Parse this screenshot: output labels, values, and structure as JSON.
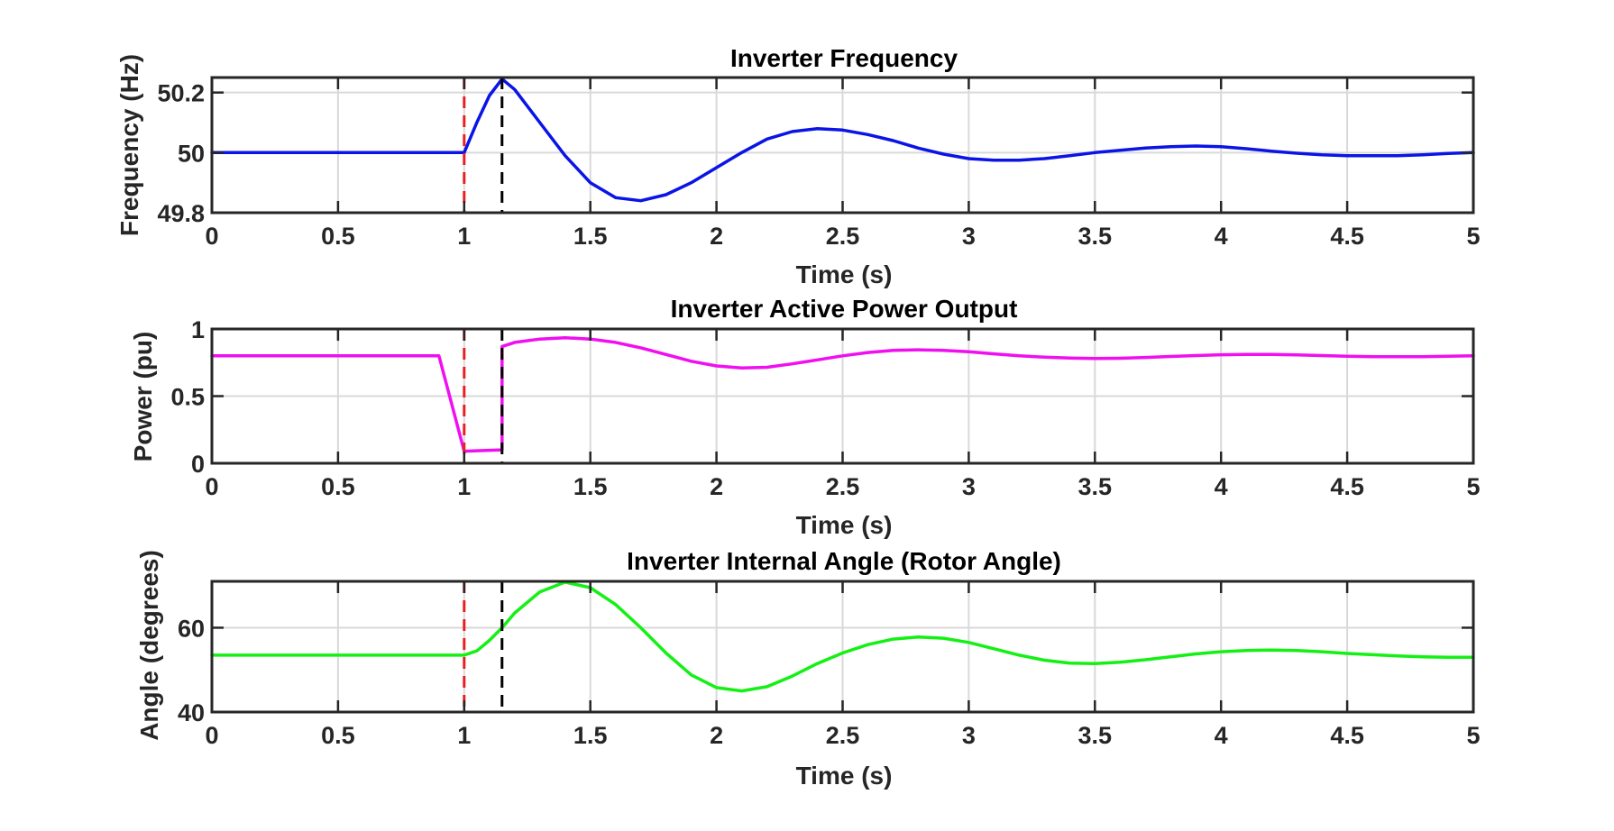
{
  "figure": {
    "background": "#ffffff",
    "axes_color": "#262626",
    "grid_color": "#d9d9d9",
    "event_start_color": "#e8211f",
    "event_clear_color": "#000000"
  },
  "chart_data": [
    {
      "type": "line",
      "title": "Inverter Frequency",
      "xlabel": "Time (s)",
      "ylabel": "Frequency (Hz)",
      "xlim": [
        0,
        5
      ],
      "ylim": [
        49.8,
        50.25
      ],
      "xticks": [
        0,
        0.5,
        1,
        1.5,
        2,
        2.5,
        3,
        3.5,
        4,
        4.5,
        5
      ],
      "xtick_labels": [
        "0",
        "0.5",
        "1",
        "1.5",
        "2",
        "2.5",
        "3",
        "3.5",
        "4",
        "4.5",
        "5"
      ],
      "yticks": [
        49.8,
        50,
        50.2
      ],
      "ytick_labels": [
        "49.8",
        "50",
        "50.2"
      ],
      "grid": true,
      "vlines": [
        {
          "x": 1.0,
          "style": "dashed",
          "color": "#e8211f"
        },
        {
          "x": 1.15,
          "style": "dashed",
          "color": "#000000"
        }
      ],
      "series": [
        {
          "color": "#0a14e6",
          "x": [
            0,
            1.0,
            1.05,
            1.1,
            1.15,
            1.2,
            1.3,
            1.4,
            1.5,
            1.6,
            1.7,
            1.8,
            1.9,
            2.0,
            2.1,
            2.2,
            2.3,
            2.4,
            2.5,
            2.6,
            2.7,
            2.8,
            2.9,
            3.0,
            3.1,
            3.2,
            3.3,
            3.4,
            3.5,
            3.6,
            3.7,
            3.8,
            3.9,
            4.0,
            4.1,
            4.2,
            4.3,
            4.4,
            4.5,
            4.6,
            4.7,
            4.8,
            4.9,
            5.0
          ],
          "y": [
            50.0,
            50.0,
            50.1,
            50.19,
            50.245,
            50.21,
            50.1,
            49.99,
            49.9,
            49.85,
            49.84,
            49.86,
            49.9,
            49.95,
            50.0,
            50.045,
            50.07,
            50.08,
            50.075,
            50.06,
            50.04,
            50.015,
            49.995,
            49.98,
            49.975,
            49.975,
            49.98,
            49.99,
            50.0,
            50.008,
            50.015,
            50.02,
            50.022,
            50.02,
            50.013,
            50.005,
            49.998,
            49.993,
            49.99,
            49.99,
            49.99,
            49.993,
            49.997,
            50.0
          ]
        }
      ]
    },
    {
      "type": "line",
      "title": "Inverter Active Power Output",
      "xlabel": "Time (s)",
      "ylabel": "Power (pu)",
      "xlim": [
        0,
        5
      ],
      "ylim": [
        0,
        1
      ],
      "xticks": [
        0,
        0.5,
        1,
        1.5,
        2,
        2.5,
        3,
        3.5,
        4,
        4.5,
        5
      ],
      "xtick_labels": [
        "0",
        "0.5",
        "1",
        "1.5",
        "2",
        "2.5",
        "3",
        "3.5",
        "4",
        "4.5",
        "5"
      ],
      "yticks": [
        0,
        0.5,
        1
      ],
      "ytick_labels": [
        "0",
        "0.5",
        "1"
      ],
      "grid": true,
      "vlines": [
        {
          "x": 1.0,
          "style": "dashed",
          "color": "#e8211f"
        },
        {
          "x": 1.15,
          "style": "dashed",
          "color": "#000000"
        }
      ],
      "series": [
        {
          "color": "#f00ff0",
          "x": [
            0,
            0.9,
            1.0,
            1.15,
            1.15,
            1.2,
            1.3,
            1.4,
            1.5,
            1.6,
            1.7,
            1.8,
            1.9,
            2.0,
            2.1,
            2.2,
            2.3,
            2.4,
            2.5,
            2.6,
            2.7,
            2.8,
            2.9,
            3.0,
            3.1,
            3.2,
            3.3,
            3.4,
            3.5,
            3.6,
            3.7,
            3.8,
            3.9,
            4.0,
            4.1,
            4.2,
            4.3,
            4.4,
            4.5,
            4.6,
            4.7,
            4.8,
            4.9,
            5.0
          ],
          "y": [
            0.8,
            0.8,
            0.09,
            0.1,
            0.87,
            0.9,
            0.925,
            0.935,
            0.925,
            0.9,
            0.86,
            0.81,
            0.76,
            0.725,
            0.71,
            0.715,
            0.74,
            0.77,
            0.8,
            0.825,
            0.84,
            0.845,
            0.84,
            0.83,
            0.815,
            0.8,
            0.79,
            0.783,
            0.78,
            0.782,
            0.788,
            0.795,
            0.802,
            0.808,
            0.81,
            0.81,
            0.807,
            0.802,
            0.797,
            0.794,
            0.793,
            0.794,
            0.797,
            0.8
          ]
        }
      ]
    },
    {
      "type": "line",
      "title": "Inverter Internal Angle (Rotor Angle)",
      "xlabel": "Time (s)",
      "ylabel": "Angle (degrees)",
      "xlim": [
        0,
        5
      ],
      "ylim": [
        40,
        71
      ],
      "xticks": [
        0,
        0.5,
        1,
        1.5,
        2,
        2.5,
        3,
        3.5,
        4,
        4.5,
        5
      ],
      "xtick_labels": [
        "0",
        "0.5",
        "1",
        "1.5",
        "2",
        "2.5",
        "3",
        "3.5",
        "4",
        "4.5",
        "5"
      ],
      "yticks": [
        40,
        60
      ],
      "ytick_labels": [
        "40",
        "60"
      ],
      "grid": true,
      "vlines": [
        {
          "x": 1.0,
          "style": "dashed",
          "color": "#e8211f"
        },
        {
          "x": 1.15,
          "style": "dashed",
          "color": "#000000"
        }
      ],
      "series": [
        {
          "color": "#14f014",
          "x": [
            0,
            1.0,
            1.05,
            1.1,
            1.15,
            1.2,
            1.3,
            1.4,
            1.5,
            1.6,
            1.7,
            1.8,
            1.9,
            2.0,
            2.1,
            2.2,
            2.3,
            2.4,
            2.5,
            2.6,
            2.7,
            2.8,
            2.9,
            3.0,
            3.1,
            3.2,
            3.3,
            3.4,
            3.5,
            3.6,
            3.7,
            3.8,
            3.9,
            4.0,
            4.1,
            4.2,
            4.3,
            4.4,
            4.5,
            4.6,
            4.7,
            4.8,
            4.9,
            5.0
          ],
          "y": [
            53.5,
            53.5,
            54.5,
            57,
            60,
            63.5,
            68.5,
            70.8,
            69.5,
            65.5,
            60,
            54,
            48.8,
            45.8,
            45,
            46,
            48.5,
            51.5,
            54,
            56,
            57.3,
            57.8,
            57.5,
            56.5,
            55,
            53.5,
            52.3,
            51.6,
            51.5,
            51.8,
            52.4,
            53.1,
            53.8,
            54.3,
            54.6,
            54.7,
            54.6,
            54.3,
            53.9,
            53.6,
            53.3,
            53.1,
            53.0,
            53.0
          ]
        }
      ]
    }
  ]
}
